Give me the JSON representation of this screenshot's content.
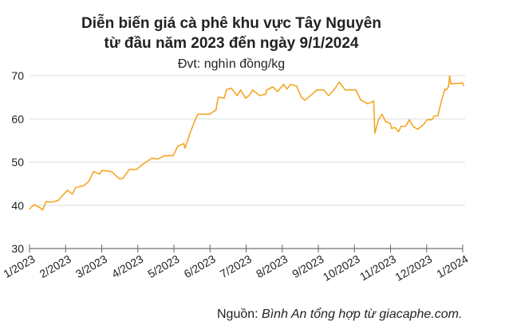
{
  "chart_data": {
    "type": "line",
    "title": "Diễn biến giá cà phê khu vực Tây Nguyên",
    "subtitle": "từ đầu năm 2023 đến ngày 9/1/2024",
    "unit_label": "Đvt: nghìn đồng/kg",
    "xlabel": "",
    "ylabel": "",
    "ylim": [
      30,
      70
    ],
    "yticks": [
      "30",
      "40",
      "50",
      "60",
      "70"
    ],
    "xlim": [
      "2023-01-01",
      "2024-01-01"
    ],
    "xticks": [
      "1/2023",
      "2/2023",
      "3/2023",
      "4/2023",
      "5/2023",
      "6/2023",
      "7/2023",
      "8/2023",
      "9/2023",
      "10/2023",
      "11/2023",
      "12/2023",
      "1/2024"
    ],
    "grid": "horizontal",
    "line_color": "#f5a623",
    "series": [
      {
        "x": [
          "2023-01-01",
          "2023-01-05",
          "2023-01-10",
          "2023-01-12",
          "2023-01-15",
          "2023-01-19",
          "2023-01-25",
          "2023-01-30",
          "2023-02-02",
          "2023-02-06",
          "2023-02-09",
          "2023-02-16",
          "2023-02-20",
          "2023-02-24",
          "2023-03-01",
          "2023-03-03",
          "2023-03-11",
          "2023-03-18",
          "2023-03-21",
          "2023-03-26",
          "2023-04-01",
          "2023-04-06",
          "2023-04-14",
          "2023-04-19",
          "2023-04-25",
          "2023-05-02",
          "2023-05-06",
          "2023-05-11",
          "2023-05-12",
          "2023-05-16",
          "2023-05-20",
          "2023-05-23",
          "2023-06-02",
          "2023-06-05",
          "2023-06-07",
          "2023-06-09",
          "2023-06-14",
          "2023-06-16",
          "2023-06-20",
          "2023-06-25",
          "2023-06-28",
          "2023-07-02",
          "2023-07-05",
          "2023-07-08",
          "2023-07-14",
          "2023-07-17",
          "2023-07-19",
          "2023-07-20",
          "2023-07-25",
          "2023-07-29",
          "2023-08-03",
          "2023-08-06",
          "2023-08-09",
          "2023-08-14",
          "2023-08-18",
          "2023-08-21",
          "2023-08-27",
          "2023-08-31",
          "2023-09-06",
          "2023-09-10",
          "2023-09-15",
          "2023-09-19",
          "2023-09-24",
          "2023-10-03",
          "2023-10-07",
          "2023-10-13",
          "2023-10-18",
          "2023-10-19",
          "2023-10-22",
          "2023-10-25",
          "2023-10-28",
          "2023-11-01",
          "2023-11-02",
          "2023-11-05",
          "2023-11-08",
          "2023-11-10",
          "2023-11-14",
          "2023-11-17",
          "2023-11-20",
          "2023-11-24",
          "2023-11-29",
          "2023-12-02",
          "2023-12-06",
          "2023-12-08",
          "2023-12-11",
          "2023-12-14",
          "2023-12-17",
          "2023-12-18",
          "2023-12-20",
          "2023-12-21",
          "2023-12-22",
          "2024-01-01",
          "2024-01-02"
        ],
        "y": [
          39.1,
          40.2,
          39.4,
          38.9,
          40.9,
          40.7,
          41.1,
          42.6,
          43.5,
          42.6,
          44.1,
          44.6,
          45.6,
          47.8,
          47.2,
          48.1,
          47.8,
          46.1,
          46.3,
          48.3,
          48.3,
          49.4,
          50.9,
          50.7,
          51.5,
          51.5,
          53.7,
          54.3,
          53.2,
          56.5,
          59.4,
          61.1,
          61.1,
          61.7,
          62.0,
          65.0,
          64.8,
          66.8,
          67.1,
          65.4,
          66.7,
          64.8,
          65.4,
          66.7,
          65.4,
          65.6,
          65.7,
          66.7,
          67.4,
          66.3,
          68.0,
          66.9,
          68.0,
          67.6,
          65.0,
          64.3,
          65.7,
          66.7,
          66.7,
          65.4,
          66.9,
          68.5,
          66.7,
          66.7,
          64.4,
          63.5,
          64.1,
          56.7,
          59.8,
          61.1,
          59.4,
          58.9,
          57.8,
          58.0,
          57.0,
          58.3,
          58.3,
          59.8,
          58.3,
          57.6,
          58.7,
          59.8,
          59.8,
          60.7,
          60.7,
          64.1,
          66.9,
          66.7,
          67.4,
          70.0,
          68.1,
          68.3,
          67.6
        ]
      }
    ]
  },
  "source": {
    "prefix": "Nguồn: ",
    "text": "Bình An tổng hợp từ giacaphe.com."
  }
}
